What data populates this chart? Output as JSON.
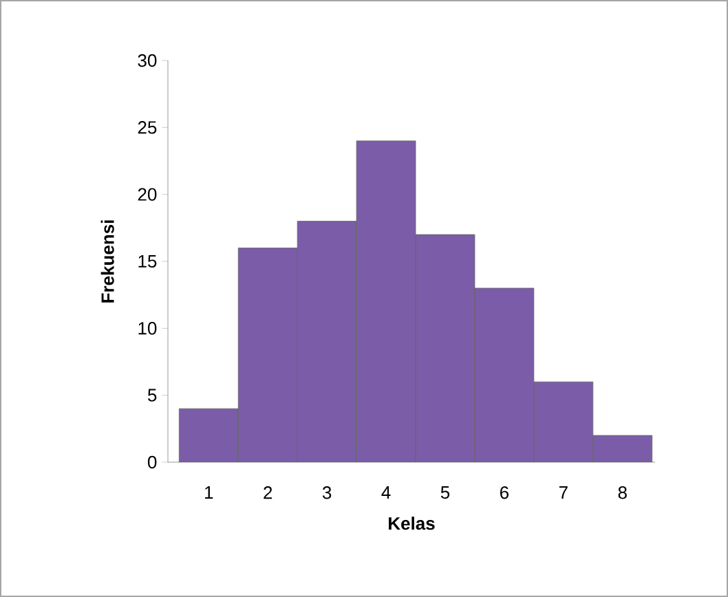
{
  "chart_data": {
    "type": "bar",
    "xlabel": "Kelas",
    "ylabel": "Frekuensi",
    "categories": [
      "1",
      "2",
      "3",
      "4",
      "5",
      "6",
      "7",
      "8"
    ],
    "values": [
      4,
      16,
      18,
      24,
      17,
      13,
      6,
      2
    ],
    "color": "#7b5ca8",
    "ylim": [
      0,
      30
    ],
    "yticks": [
      0,
      5,
      10,
      15,
      20,
      25,
      30
    ],
    "grid": false
  }
}
